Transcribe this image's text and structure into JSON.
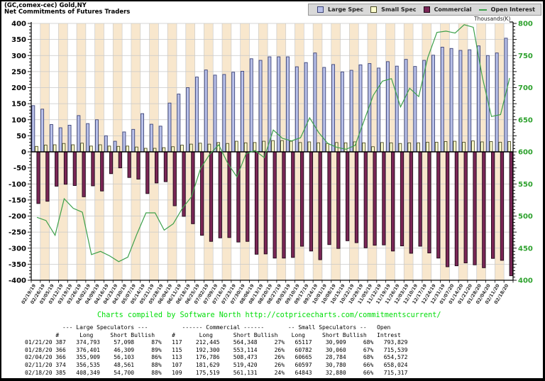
{
  "title": {
    "line1": "(GC,comex-cec) Gold,NY",
    "line2": "Net Commitments of Futures Traders"
  },
  "legend": {
    "items": [
      {
        "label": "Large Spec",
        "swatch": "square",
        "fill": "#b9c1ea",
        "border": "#3c4377"
      },
      {
        "label": "Small Spec",
        "swatch": "square",
        "fill": "#ffffcf",
        "border": "#4a4a22"
      },
      {
        "label": "Commercial",
        "swatch": "square",
        "fill": "#7a2656",
        "border": "#200a18"
      },
      {
        "label": "Open Interest",
        "swatch": "line",
        "fill": "#3da04a",
        "border": "#3da04a"
      }
    ]
  },
  "footer_note": "Charts compiled by Software North  http://cotpricecharts.com/commitmentscurrent/",
  "chart_data": {
    "type": "bar",
    "title": "Net Commitments of Futures Traders",
    "ylim_left": [
      -400,
      400
    ],
    "ylim_right": [
      400,
      800
    ],
    "y_step": 50,
    "right_axis_title": "Thousands(K)",
    "categories": [
      "02/19/19",
      "02/26/19",
      "03/05/19",
      "03/12/19",
      "03/19/19",
      "03/26/19",
      "04/02/19",
      "04/09/19",
      "04/16/19",
      "04/23/19",
      "04/30/19",
      "05/07/19",
      "05/14/19",
      "05/21/19",
      "05/28/19",
      "06/04/19",
      "06/11/19",
      "06/18/19",
      "06/25/19",
      "07/02/19",
      "07/09/19",
      "07/16/19",
      "07/23/19",
      "07/30/19",
      "08/06/19",
      "08/13/19",
      "08/20/19",
      "08/27/19",
      "09/03/19",
      "09/10/19",
      "09/17/19",
      "09/24/19",
      "10/01/19",
      "10/08/19",
      "10/15/19",
      "10/22/19",
      "10/29/19",
      "11/05/19",
      "11/12/19",
      "11/19/19",
      "11/26/19",
      "12/03/19",
      "12/10/19",
      "12/17/19",
      "12/24/19",
      "12/31/19",
      "01/07/20",
      "01/14/20",
      "01/21/20",
      "01/28/20",
      "02/04/20",
      "02/11/20",
      "02/18/20"
    ],
    "series": [
      {
        "name": "Large Spec",
        "type": "bar",
        "axis": "left",
        "values": [
          144,
          133,
          85,
          75,
          83,
          113,
          88,
          100,
          50,
          33,
          62,
          70,
          119,
          86,
          80,
          152,
          180,
          200,
          233,
          255,
          239,
          241,
          248,
          251,
          290,
          285,
          296,
          296,
          296,
          265,
          278,
          308,
          263,
          272,
          249,
          254,
          271,
          275,
          261,
          281,
          267,
          288,
          266,
          285,
          301,
          326,
          322,
          316,
          318,
          330,
          300,
          308,
          354
        ]
      },
      {
        "name": "Small Spec",
        "type": "bar",
        "axis": "left",
        "values": [
          17,
          21,
          22,
          26,
          22,
          27,
          18,
          22,
          18,
          17,
          18,
          15,
          11,
          11,
          13,
          16,
          21,
          24,
          27,
          24,
          29,
          26,
          33,
          28,
          29,
          33,
          35,
          35,
          33,
          29,
          31,
          28,
          26,
          29,
          28,
          31,
          28,
          16,
          29,
          28,
          26,
          28,
          28,
          30,
          30,
          32,
          33,
          30,
          34,
          31,
          32,
          30,
          32
        ]
      },
      {
        "name": "Commercial",
        "type": "bar",
        "axis": "left",
        "values": [
          -161,
          -154,
          -107,
          -101,
          -105,
          -140,
          -106,
          -122,
          -68,
          -50,
          -80,
          -85,
          -130,
          -97,
          -93,
          -168,
          -201,
          -224,
          -260,
          -279,
          -268,
          -267,
          -281,
          -279,
          -319,
          -318,
          -331,
          -331,
          -329,
          -294,
          -309,
          -336,
          -289,
          -301,
          -277,
          -283,
          -299,
          -291,
          -290,
          -309,
          -293,
          -316,
          -294,
          -315,
          -331,
          -358,
          -355,
          -346,
          -352,
          -361,
          -332,
          -338,
          -386
        ]
      },
      {
        "name": "Open Interest",
        "type": "line",
        "axis": "right",
        "values": [
          498,
          493,
          470,
          527,
          512,
          506,
          440,
          445,
          438,
          429,
          436,
          472,
          505,
          505,
          478,
          488,
          512,
          530,
          574,
          596,
          611,
          582,
          561,
          597,
          602,
          591,
          634,
          621,
          617,
          622,
          653,
          630,
          613,
          607,
          604,
          610,
          649,
          688,
          710,
          714,
          670,
          699,
          686,
          747,
          786,
          788,
          785,
          798,
          794,
          716,
          655,
          658,
          715
        ]
      }
    ]
  },
  "table": {
    "group_header": "           --- Large Speculators ---          ------ Commercial ------       -- Small Speculators --   Open",
    "col_header": "         #      Long     Short Bullish     #       Long      Short Bullish    Long     Short Bullish   Intrest",
    "rows": [
      [
        "01/21/20",
        "387",
        "374,793",
        "57,098",
        "87%",
        "117",
        "212,445",
        "564,348",
        "27%",
        "65117",
        "30,909",
        "68%",
        "793,829"
      ],
      [
        "01/28/20",
        "366",
        "376,401",
        "46,309",
        "89%",
        "115",
        "192,300",
        "553,114",
        "26%",
        "60782",
        "30,060",
        "67%",
        "715,539"
      ],
      [
        "02/04/20",
        "366",
        "355,909",
        "56,103",
        "86%",
        "113",
        "176,786",
        "508,473",
        "26%",
        "60665",
        "28,784",
        "68%",
        "654,572"
      ],
      [
        "02/11/20",
        "374",
        "356,535",
        "48,561",
        "88%",
        "107",
        "181,629",
        "519,420",
        "26%",
        "60597",
        "30,780",
        "66%",
        "658,024"
      ],
      [
        "02/18/20",
        "385",
        "408,349",
        "54,700",
        "88%",
        "109",
        "175,519",
        "561,131",
        "24%",
        "64843",
        "32,880",
        "66%",
        "715,317"
      ]
    ]
  }
}
